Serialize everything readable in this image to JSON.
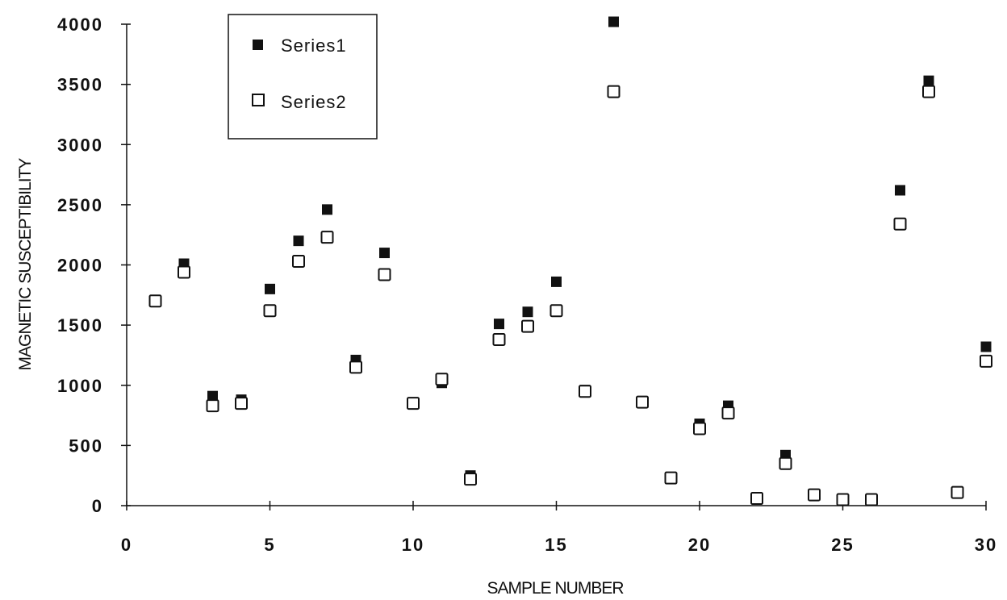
{
  "chart_data": {
    "type": "scatter",
    "title": "",
    "xlabel": "SAMPLE NUMBER",
    "ylabel": "MAGNETIC SUSCEPTIBILITY",
    "xlim": [
      0,
      30
    ],
    "ylim": [
      0,
      4000
    ],
    "xticks": [
      0,
      5,
      10,
      15,
      20,
      25,
      30
    ],
    "yticks": [
      0,
      500,
      1000,
      1500,
      2000,
      2500,
      3000,
      3500,
      4000
    ],
    "grid": false,
    "legend_position": "top-left",
    "series": [
      {
        "name": "Series1",
        "marker": "filled-square",
        "color": "#111111",
        "points": [
          [
            2,
            2010
          ],
          [
            3,
            910
          ],
          [
            4,
            880
          ],
          [
            5,
            1800
          ],
          [
            6,
            2200
          ],
          [
            7,
            2460
          ],
          [
            8,
            1210
          ],
          [
            9,
            2100
          ],
          [
            10,
            850
          ],
          [
            11,
            1020
          ],
          [
            12,
            250
          ],
          [
            13,
            1510
          ],
          [
            14,
            1610
          ],
          [
            15,
            1860
          ],
          [
            16,
            960
          ],
          [
            17,
            4020
          ],
          [
            18,
            860
          ],
          [
            20,
            680
          ],
          [
            21,
            830
          ],
          [
            22,
            60
          ],
          [
            23,
            420
          ],
          [
            24,
            90
          ],
          [
            25,
            50
          ],
          [
            26,
            50
          ],
          [
            27,
            2620
          ],
          [
            28,
            3530
          ],
          [
            29,
            110
          ],
          [
            30,
            1320
          ]
        ]
      },
      {
        "name": "Series2",
        "marker": "open-square",
        "color": "#111111",
        "points": [
          [
            1,
            1700
          ],
          [
            2,
            1940
          ],
          [
            3,
            830
          ],
          [
            4,
            850
          ],
          [
            5,
            1620
          ],
          [
            6,
            2030
          ],
          [
            7,
            2230
          ],
          [
            8,
            1150
          ],
          [
            9,
            1920
          ],
          [
            10,
            850
          ],
          [
            11,
            1050
          ],
          [
            12,
            220
          ],
          [
            13,
            1380
          ],
          [
            14,
            1490
          ],
          [
            15,
            1620
          ],
          [
            16,
            950
          ],
          [
            17,
            3440
          ],
          [
            18,
            860
          ],
          [
            19,
            230
          ],
          [
            20,
            640
          ],
          [
            21,
            770
          ],
          [
            22,
            60
          ],
          [
            23,
            350
          ],
          [
            24,
            90
          ],
          [
            25,
            50
          ],
          [
            26,
            50
          ],
          [
            27,
            2340
          ],
          [
            28,
            3440
          ],
          [
            29,
            110
          ],
          [
            30,
            1200
          ]
        ]
      }
    ]
  }
}
